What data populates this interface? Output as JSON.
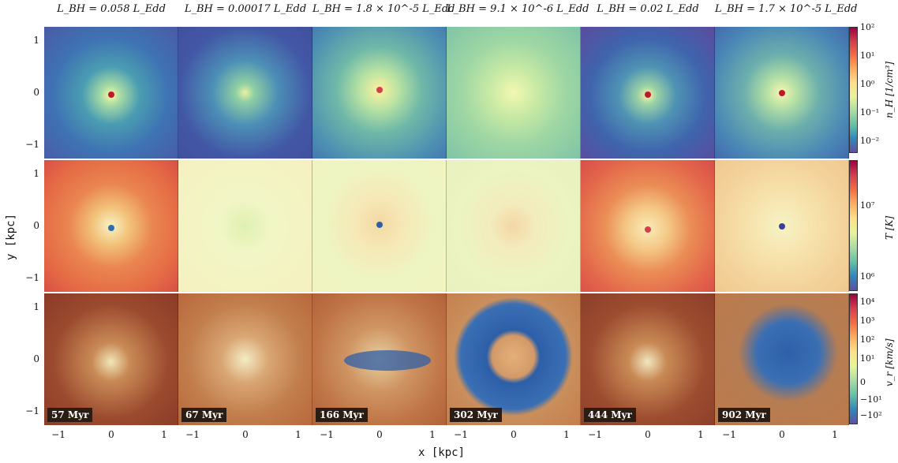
{
  "columns": [
    {
      "title": "L_BH = 0.058 L_Edd"
    },
    {
      "title": "L_BH = 0.00017 L_Edd"
    },
    {
      "title": "L_BH = 1.8 × 10^-5 L_Edd"
    },
    {
      "title": "L_BH = 9.1 × 10^-6 L_Edd"
    },
    {
      "title": "L_BH = 0.02 L_Edd"
    },
    {
      "title": "L_BH = 1.7 × 10^-5 L_Edd"
    }
  ],
  "time_labels": [
    "57 Myr",
    "67 Myr",
    "166 Myr",
    "302 Myr",
    "444 Myr",
    "902 Myr"
  ],
  "axes": {
    "xlabel": "x [kpc]",
    "ylabel": "y [kpc]",
    "x_ticks": [
      "−1",
      "0",
      "1"
    ],
    "y_ticks": [
      "1",
      "0",
      "−1"
    ]
  },
  "colorbars": [
    {
      "label": "n_H [1/cm³]",
      "ticks": [
        "10²",
        "10¹",
        "10⁰",
        "10⁻¹",
        "10⁻²"
      ]
    },
    {
      "label": "T [K]",
      "ticks": [
        "10⁷",
        "10⁶"
      ]
    },
    {
      "label": "v_r [km/s]",
      "ticks": [
        "10⁴",
        "10³",
        "10²",
        "10¹",
        "0",
        "−10¹",
        "−10²"
      ]
    }
  ],
  "colors": {
    "density_bg": [
      "#3a6fb0",
      "#3b5fa8",
      "#5aa7a8",
      "#93cfa6",
      "#3a6aae",
      "#5a9fb8"
    ],
    "temperature_bg": [
      "#e8744a",
      "#f5f5c2",
      "#f1f3bf",
      "#f2f5bd",
      "#e6704a",
      "#f6ecb8"
    ],
    "velocity_bg": "#b9683c",
    "outflow_blue": "#2d5fa8"
  }
}
